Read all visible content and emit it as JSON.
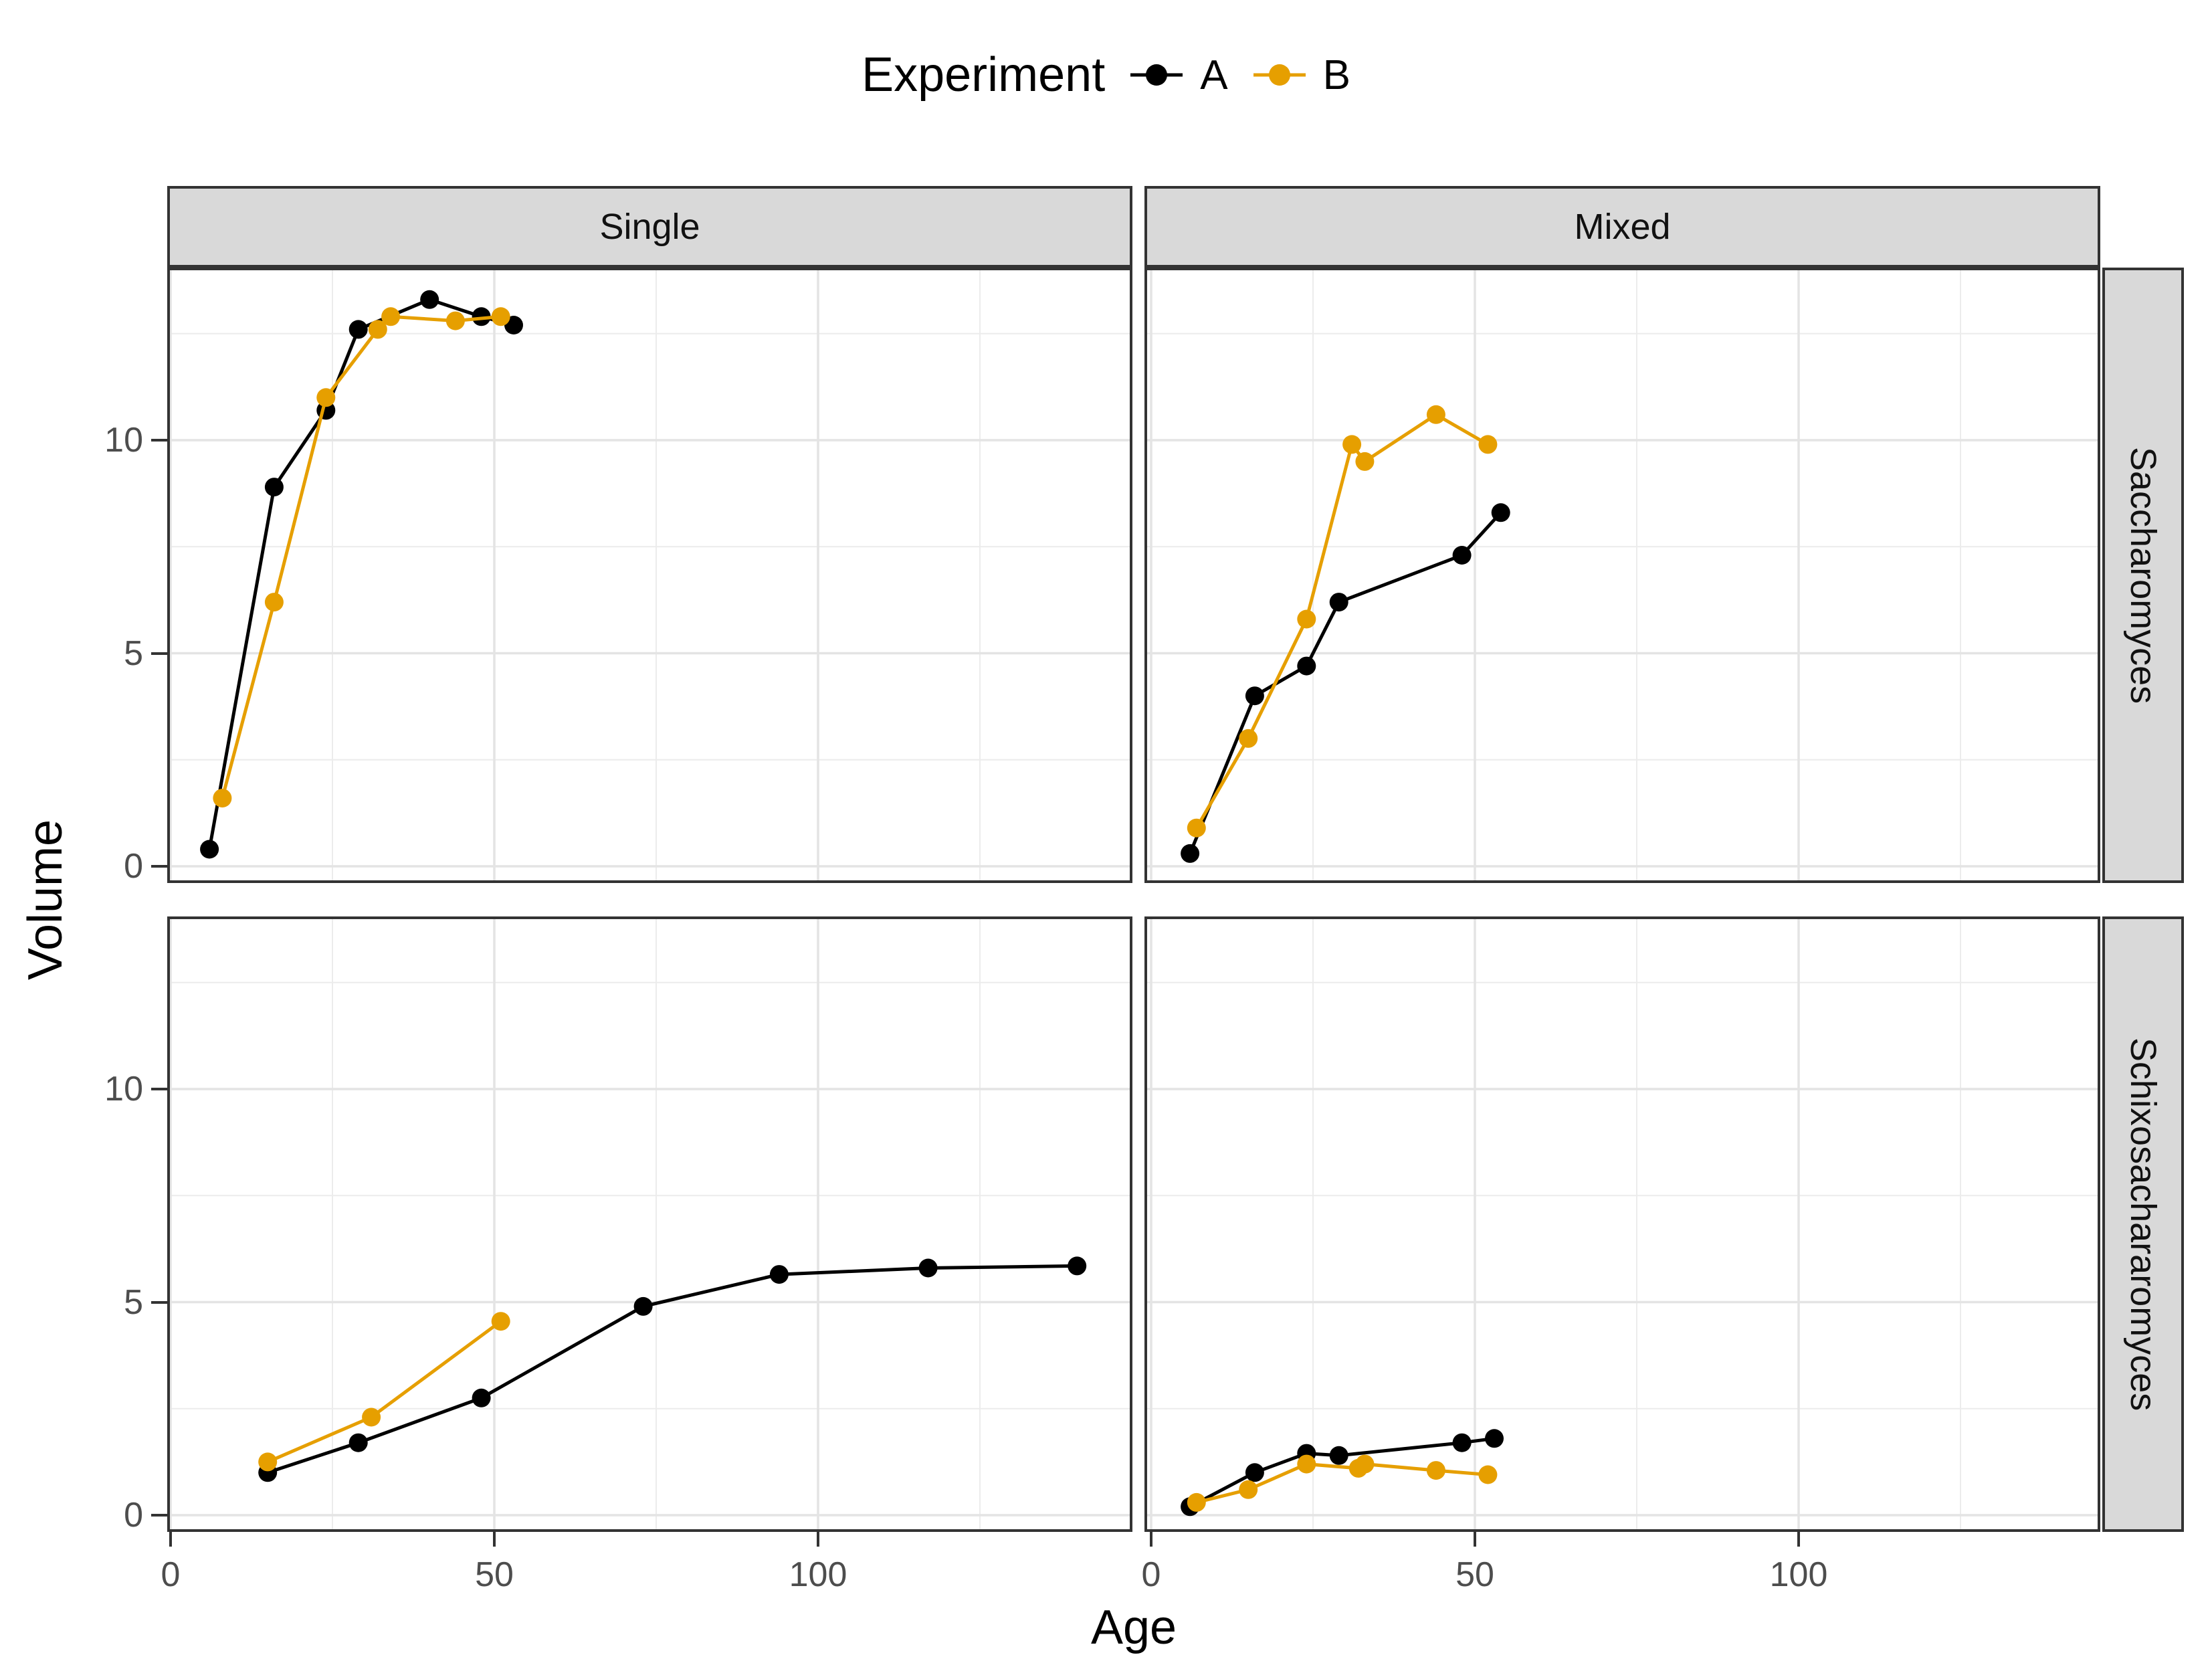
{
  "legend": {
    "title": "Experiment",
    "series": [
      {
        "label": "A",
        "color": "#000000"
      },
      {
        "label": "B",
        "color": "#E69F00"
      }
    ]
  },
  "axes": {
    "x_title": "Age",
    "y_title": "Volume",
    "x_ticks": [
      "0",
      "50",
      "100"
    ],
    "x_tick_values": [
      0,
      50,
      100
    ],
    "y_ticks": [
      "0",
      "5",
      "10"
    ],
    "y_tick_values": [
      0,
      5,
      10
    ]
  },
  "facets": {
    "columns": [
      "Single",
      "Mixed"
    ],
    "rows": [
      "Saccharomyces",
      "Schixosachararomyces"
    ]
  },
  "colors": {
    "background": "#FFFFFF",
    "strip_fill": "#D9D9D9",
    "panel_border": "#333333",
    "grid_major": "#E4E4E4",
    "grid_minor": "#ECECEC",
    "tick_mark": "#333333",
    "tick_label": "#4D4D4D",
    "series_a": "#000000",
    "series_b": "#E69F00"
  },
  "chart_data": [
    {
      "type": "line",
      "title": "Single / Saccharomyces",
      "facet_col": "Single",
      "facet_row": "Saccharomyces",
      "xlabel": "Age",
      "ylabel": "Volume",
      "xlim": [
        -0.5,
        148.5
      ],
      "ylim": [
        -0.4,
        14.05
      ],
      "x_ticks": [
        0,
        50,
        100
      ],
      "y_ticks": [
        0,
        5,
        10
      ],
      "grid": true,
      "legend_position": "top",
      "series": [
        {
          "name": "A",
          "color": "#000000",
          "points": [
            [
              6,
              0.4
            ],
            [
              16,
              8.9
            ],
            [
              24,
              10.7
            ],
            [
              29,
              12.6
            ],
            [
              40,
              13.3
            ],
            [
              48,
              12.9
            ],
            [
              53,
              12.7
            ]
          ]
        },
        {
          "name": "B",
          "color": "#E69F00",
          "points": [
            [
              8,
              1.6
            ],
            [
              16,
              6.2
            ],
            [
              24,
              11.0
            ],
            [
              32,
              12.6
            ],
            [
              34,
              12.9
            ],
            [
              44,
              12.8
            ],
            [
              51,
              12.9
            ]
          ]
        }
      ]
    },
    {
      "type": "line",
      "title": "Mixed / Saccharomyces",
      "facet_col": "Mixed",
      "facet_row": "Saccharomyces",
      "xlabel": "Age",
      "ylabel": "Volume",
      "xlim": [
        -0.5,
        147.0
      ],
      "ylim": [
        -0.4,
        14.05
      ],
      "x_ticks": [
        0,
        50,
        100
      ],
      "y_ticks": [
        0,
        5,
        10
      ],
      "grid": true,
      "legend_position": "top",
      "series": [
        {
          "name": "A",
          "color": "#000000",
          "points": [
            [
              6,
              0.3
            ],
            [
              16,
              4.0
            ],
            [
              24,
              4.7
            ],
            [
              29,
              6.2
            ],
            [
              48,
              7.3
            ],
            [
              54,
              8.3
            ]
          ]
        },
        {
          "name": "B",
          "color": "#E69F00",
          "points": [
            [
              7,
              0.9
            ],
            [
              15,
              3.0
            ],
            [
              24,
              5.8
            ],
            [
              31,
              9.9
            ],
            [
              33,
              9.5
            ],
            [
              44,
              10.6
            ],
            [
              52,
              9.9
            ]
          ]
        }
      ]
    },
    {
      "type": "line",
      "title": "Single / Schixosachararomyces",
      "facet_col": "Single",
      "facet_row": "Schixosachararomyces",
      "xlabel": "Age",
      "ylabel": "Volume",
      "xlim": [
        -0.5,
        148.5
      ],
      "ylim": [
        -0.4,
        14.05
      ],
      "x_ticks": [
        0,
        50,
        100
      ],
      "y_ticks": [
        0,
        5,
        10
      ],
      "grid": true,
      "legend_position": "top",
      "series": [
        {
          "name": "A",
          "color": "#000000",
          "points": [
            [
              15,
              1.0
            ],
            [
              29,
              1.7
            ],
            [
              48,
              2.75
            ],
            [
              73,
              4.9
            ],
            [
              94,
              5.65
            ],
            [
              117,
              5.8
            ],
            [
              140,
              5.85
            ]
          ]
        },
        {
          "name": "B",
          "color": "#E69F00",
          "points": [
            [
              15,
              1.25
            ],
            [
              31,
              2.3
            ],
            [
              51,
              4.55
            ]
          ]
        }
      ]
    },
    {
      "type": "line",
      "title": "Mixed / Schixosachararomyces",
      "facet_col": "Mixed",
      "facet_row": "Schixosachararomyces",
      "xlabel": "Age",
      "ylabel": "Volume",
      "xlim": [
        -0.5,
        147.0
      ],
      "ylim": [
        -0.4,
        14.05
      ],
      "x_ticks": [
        0,
        50,
        100
      ],
      "y_ticks": [
        0,
        5,
        10
      ],
      "grid": true,
      "legend_position": "top",
      "series": [
        {
          "name": "A",
          "color": "#000000",
          "points": [
            [
              6,
              0.2
            ],
            [
              16,
              1.0
            ],
            [
              24,
              1.45
            ],
            [
              29,
              1.4
            ],
            [
              48,
              1.7
            ],
            [
              53,
              1.8
            ]
          ]
        },
        {
          "name": "B",
          "color": "#E69F00",
          "points": [
            [
              7,
              0.3
            ],
            [
              15,
              0.6
            ],
            [
              24,
              1.2
            ],
            [
              32,
              1.1
            ],
            [
              33,
              1.2
            ],
            [
              44,
              1.05
            ],
            [
              52,
              0.95
            ]
          ]
        }
      ]
    }
  ]
}
